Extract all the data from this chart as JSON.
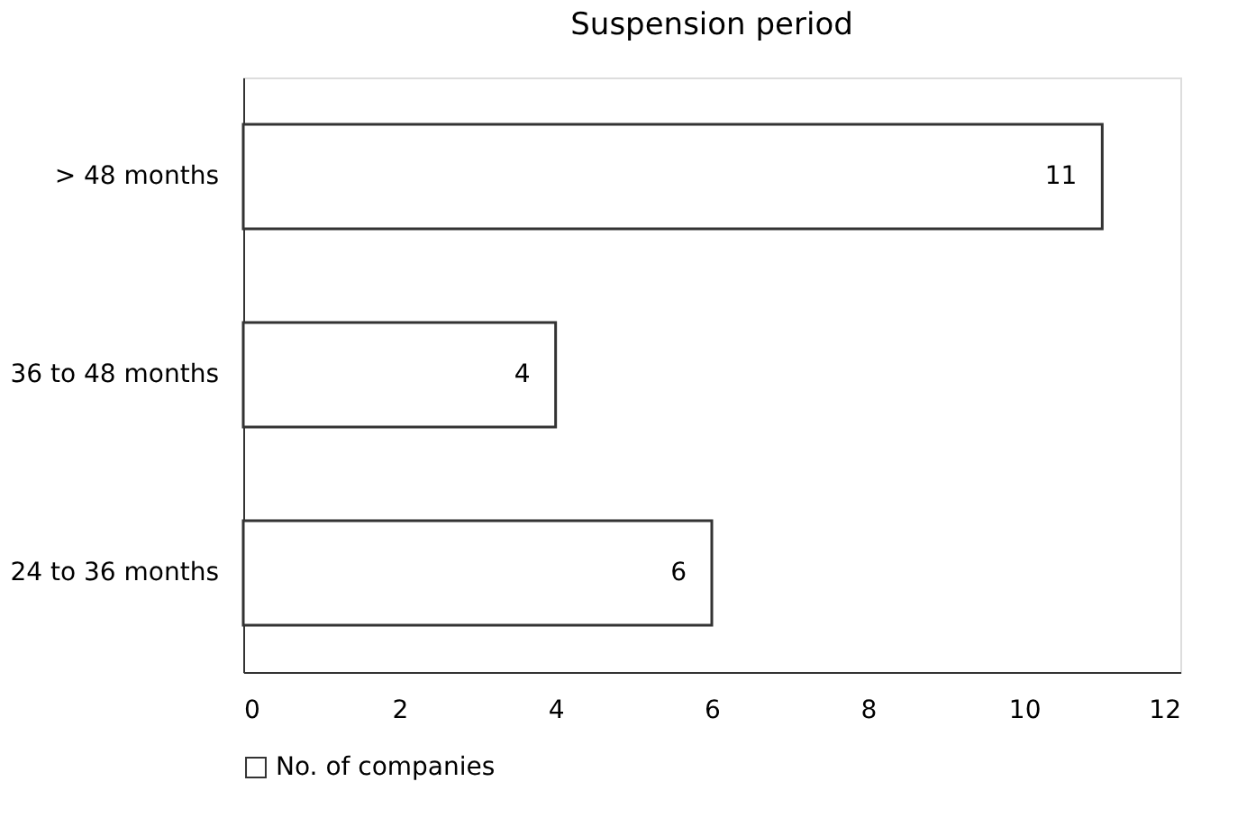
{
  "chart_data": {
    "type": "bar",
    "title": "Suspension period",
    "orientation": "horizontal",
    "categories": [
      "> 48 months",
      "36 to 48 months",
      "24 to 36 months"
    ],
    "series": [
      {
        "name": "No. of companies",
        "color": "#ffffff",
        "values": [
          11,
          4,
          6
        ]
      }
    ],
    "xlim": [
      0,
      12
    ],
    "xticks": [
      0,
      2,
      4,
      6,
      8,
      10,
      12
    ],
    "grid": false,
    "legend": "bottom",
    "data_labels": true
  }
}
